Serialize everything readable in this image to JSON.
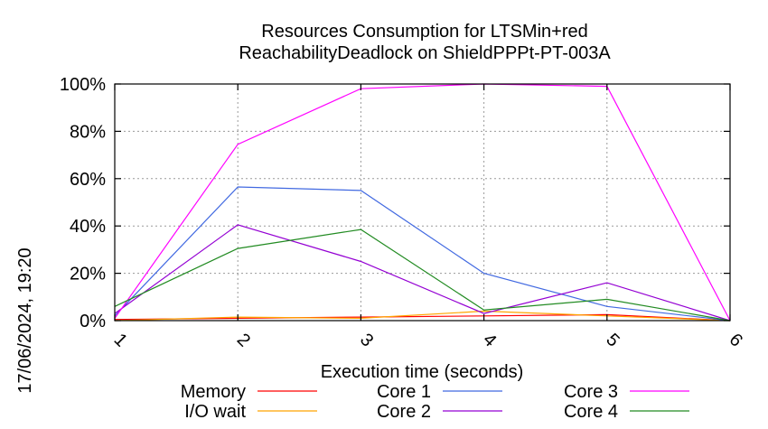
{
  "chart_data": {
    "type": "line",
    "title": "Resources Consumption for LTSMin+red",
    "subtitle": "ReachabilityDeadlock on ShieldPPPt-PT-003A",
    "xlabel": "Execution time (seconds)",
    "ylabel": "",
    "timestamp": "17/06/2024, 19:20",
    "xlim": [
      1,
      6
    ],
    "ylim": [
      0,
      100
    ],
    "x_ticks": [
      "1",
      "2",
      "3",
      "4",
      "5",
      "6"
    ],
    "y_ticks": [
      "0%",
      "20%",
      "40%",
      "60%",
      "80%",
      "100%"
    ],
    "grid": true,
    "legend_position": "bottom",
    "x": [
      1,
      2,
      3,
      4,
      5,
      6
    ],
    "series": [
      {
        "name": "Memory",
        "color": "#ff0000",
        "values": [
          0.5,
          1.0,
          1.5,
          2.0,
          2.5,
          0.0
        ]
      },
      {
        "name": "I/O wait",
        "color": "#ffa500",
        "values": [
          0.0,
          1.5,
          1.0,
          4.0,
          2.0,
          0.0
        ]
      },
      {
        "name": "Core 1",
        "color": "#4169e1",
        "values": [
          2.0,
          56.5,
          55.0,
          20.0,
          6.0,
          0.0
        ]
      },
      {
        "name": "Core 2",
        "color": "#9400d3",
        "values": [
          3.0,
          40.5,
          25.0,
          3.0,
          16.0,
          0.0
        ]
      },
      {
        "name": "Core 3",
        "color": "#ff00ff",
        "values": [
          1.0,
          74.5,
          98.0,
          100.0,
          99.0,
          0.0
        ]
      },
      {
        "name": "Core 4",
        "color": "#228b22",
        "values": [
          6.0,
          30.5,
          38.5,
          4.5,
          9.0,
          0.0
        ]
      }
    ]
  }
}
